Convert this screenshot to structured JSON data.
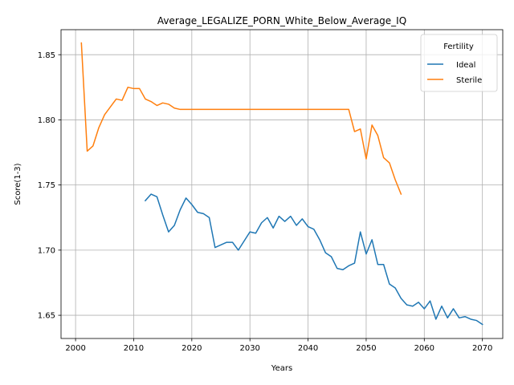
{
  "chart_data": {
    "type": "line",
    "title": "Average_LEGALIZE_PORN_White_Below_Average_IQ",
    "xlabel": "Years",
    "ylabel": "Score(1-3)",
    "xlim": [
      1997.5,
      2073.5
    ],
    "ylim": [
      1.6322,
      1.8692
    ],
    "xticks": [
      2000,
      2010,
      2020,
      2030,
      2040,
      2050,
      2060,
      2070
    ],
    "yticks": [
      1.65,
      1.7,
      1.75,
      1.8,
      1.85
    ],
    "grid": true,
    "legend": {
      "title": "Fertility",
      "placement": "top-right"
    },
    "series": [
      {
        "name": "Ideal",
        "color": "#1f77b4",
        "x": [
          2012,
          2013,
          2014,
          2015,
          2016,
          2017,
          2018,
          2019,
          2020,
          2021,
          2022,
          2023,
          2024,
          2025,
          2026,
          2027,
          2028,
          2029,
          2030,
          2031,
          2032,
          2033,
          2034,
          2035,
          2036,
          2037,
          2038,
          2039,
          2040,
          2041,
          2042,
          2043,
          2044,
          2045,
          2046,
          2047,
          2048,
          2049,
          2050,
          2051,
          2052,
          2053,
          2054,
          2055,
          2056,
          2057,
          2058,
          2059,
          2060,
          2061,
          2062,
          2063,
          2064,
          2065,
          2066,
          2067,
          2068,
          2069,
          2070
        ],
        "values": [
          1.738,
          1.743,
          1.741,
          1.727,
          1.714,
          1.719,
          1.731,
          1.74,
          1.735,
          1.729,
          1.728,
          1.725,
          1.702,
          1.704,
          1.706,
          1.706,
          1.7,
          1.707,
          1.714,
          1.713,
          1.721,
          1.725,
          1.717,
          1.726,
          1.722,
          1.726,
          1.719,
          1.724,
          1.718,
          1.716,
          1.708,
          1.698,
          1.695,
          1.686,
          1.685,
          1.688,
          1.69,
          1.714,
          1.697,
          1.708,
          1.689,
          1.689,
          1.674,
          1.671,
          1.663,
          1.658,
          1.657,
          1.66,
          1.655,
          1.661,
          1.647,
          1.657,
          1.648,
          1.655,
          1.648,
          1.649,
          1.647,
          1.646,
          1.643
        ]
      },
      {
        "name": "Sterile",
        "color": "#ff7f0e",
        "x": [
          2001,
          2002,
          2003,
          2004,
          2005,
          2006,
          2007,
          2008,
          2009,
          2010,
          2011,
          2012,
          2013,
          2014,
          2015,
          2016,
          2017,
          2018,
          2019,
          2020,
          2021,
          2022,
          2023,
          2024,
          2025,
          2026,
          2027,
          2028,
          2029,
          2030,
          2031,
          2032,
          2033,
          2034,
          2035,
          2036,
          2037,
          2038,
          2039,
          2040,
          2041,
          2042,
          2043,
          2044,
          2045,
          2046,
          2047,
          2048,
          2049,
          2050,
          2051,
          2052,
          2053,
          2054,
          2055,
          2056
        ],
        "values": [
          1.859,
          1.776,
          1.78,
          1.794,
          1.804,
          1.81,
          1.816,
          1.815,
          1.825,
          1.824,
          1.824,
          1.816,
          1.814,
          1.811,
          1.813,
          1.812,
          1.809,
          1.808,
          1.808,
          1.808,
          1.808,
          1.808,
          1.808,
          1.808,
          1.808,
          1.808,
          1.808,
          1.808,
          1.808,
          1.808,
          1.808,
          1.808,
          1.808,
          1.808,
          1.808,
          1.808,
          1.808,
          1.808,
          1.808,
          1.808,
          1.808,
          1.808,
          1.808,
          1.808,
          1.808,
          1.808,
          1.808,
          1.791,
          1.793,
          1.77,
          1.796,
          1.788,
          1.771,
          1.767,
          1.754,
          1.743
        ]
      }
    ]
  }
}
